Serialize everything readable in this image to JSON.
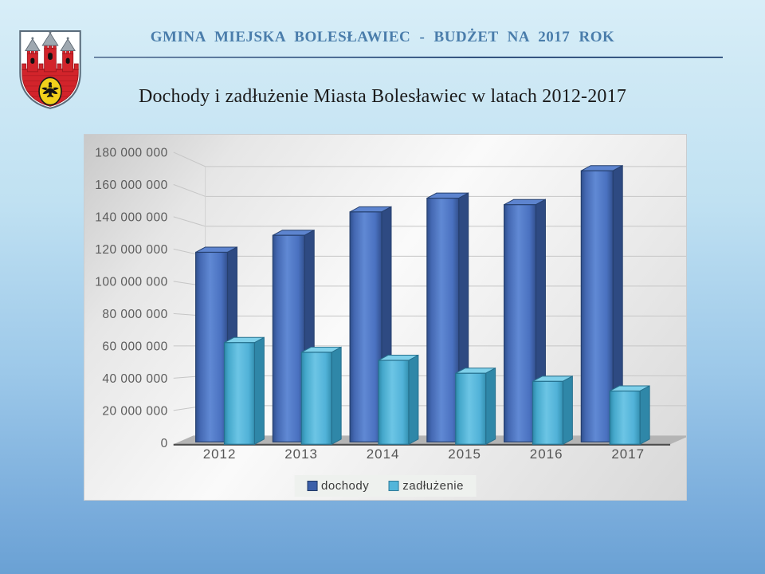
{
  "slide": {
    "header_title": "GMINA MIEJSKA BOLESŁAWIEC - BUDŻET NA 2017 ROK",
    "title": "Dochody i zadłużenie Miasta Bolesławiec w latach 2012-2017"
  },
  "crest": {
    "name": "Herb Bolesławca (coat of arms)",
    "colors": {
      "shield": "#ffffff",
      "castle_red": "#d2242b",
      "castle_dark": "#9c161d",
      "roof_grey": "#9fa8b0",
      "emblem_gold": "#f2d11b",
      "eagle_black": "#141414",
      "outline": "#5a6b7a"
    }
  },
  "chart_data": {
    "type": "bar",
    "style": "3d",
    "categories": [
      "2012",
      "2013",
      "2014",
      "2015",
      "2016",
      "2017"
    ],
    "series": [
      {
        "name": "dochody",
        "color": "#4a71c0",
        "values": [
          117500000,
          128000000,
          142500000,
          151000000,
          147000000,
          168000000
        ]
      },
      {
        "name": "zadłużenie",
        "color": "#55b7dc",
        "values": [
          63000000,
          57000000,
          52000000,
          44000000,
          39000000,
          33000000
        ]
      }
    ],
    "ylim": [
      0,
      180000000
    ],
    "ytick_step": 20000000,
    "ytick_labels": [
      "0",
      "20 000 000",
      "40 000 000",
      "60 000 000",
      "80 000 000",
      "100 000 000",
      "120 000 000",
      "140 000 000",
      "160 000 000",
      "180 000 000"
    ],
    "grid": true,
    "legend_position": "bottom"
  },
  "colors": {
    "background_top": "#d8eef8",
    "background_bottom": "#6aa1d4",
    "header_text": "#4a7dab",
    "divider": "#34547e",
    "title_text": "#1b1b1b",
    "axis_text": "#5c5c5c",
    "gridline": "#c6c6c6",
    "floor": "#b4b4b4",
    "legend_bg": "#eef1ee"
  }
}
